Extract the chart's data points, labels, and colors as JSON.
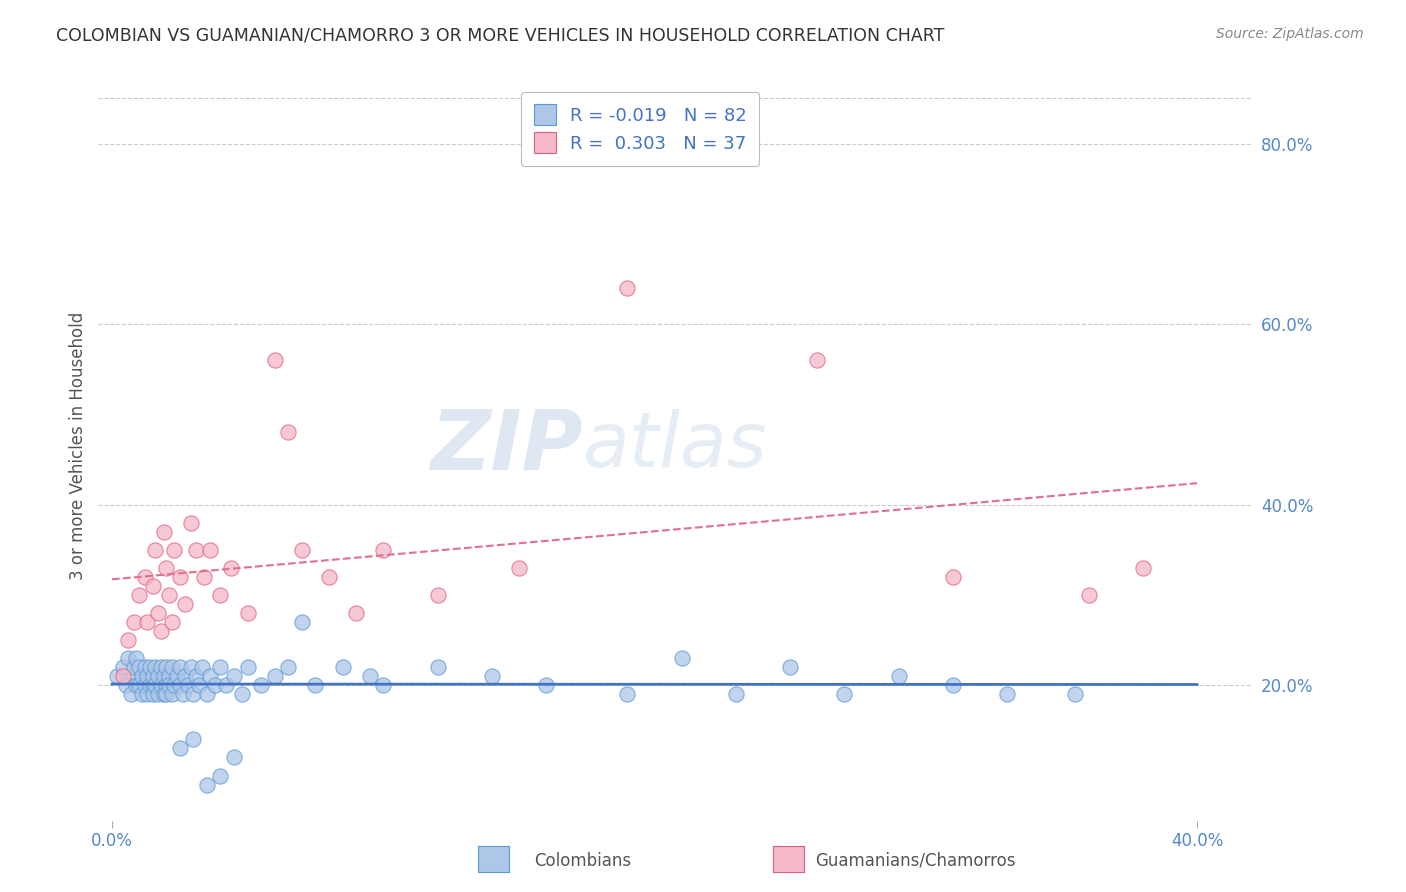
{
  "title": "COLOMBIAN VS GUAMANIAN/CHAMORRO 3 OR MORE VEHICLES IN HOUSEHOLD CORRELATION CHART",
  "source": "Source: ZipAtlas.com",
  "ylabel": "3 or more Vehicles in Household",
  "ytick_labels": [
    "20.0%",
    "40.0%",
    "60.0%",
    "80.0%"
  ],
  "ytick_values": [
    0.2,
    0.4,
    0.6,
    0.8
  ],
  "xtick_labels": [
    "0.0%",
    "40.0%"
  ],
  "xtick_values": [
    0.0,
    0.4
  ],
  "xlim": [
    -0.005,
    0.42
  ],
  "ylim": [
    0.05,
    0.88
  ],
  "legend_label1": "Colombians",
  "legend_label2": "Guamanians/Chamorros",
  "r1": -0.019,
  "n1": 82,
  "r2": 0.303,
  "n2": 37,
  "color_blue_fill": "#aec6e8",
  "color_blue_edge": "#5b9bd5",
  "color_pink_fill": "#f4b8c8",
  "color_pink_edge": "#e06080",
  "color_blue_line": "#4472c4",
  "color_pink_line": "#e07090",
  "grid_color": "#cccccc",
  "watermark_color": "#d0dde8",
  "colombian_x": [
    0.002,
    0.004,
    0.005,
    0.006,
    0.007,
    0.008,
    0.008,
    0.009,
    0.009,
    0.01,
    0.01,
    0.011,
    0.011,
    0.012,
    0.012,
    0.013,
    0.013,
    0.014,
    0.014,
    0.015,
    0.015,
    0.015,
    0.016,
    0.016,
    0.017,
    0.017,
    0.018,
    0.018,
    0.019,
    0.019,
    0.02,
    0.02,
    0.02,
    0.021,
    0.021,
    0.022,
    0.022,
    0.023,
    0.024,
    0.025,
    0.025,
    0.026,
    0.027,
    0.028,
    0.029,
    0.03,
    0.031,
    0.032,
    0.033,
    0.035,
    0.036,
    0.038,
    0.04,
    0.042,
    0.045,
    0.048,
    0.05,
    0.055,
    0.06,
    0.065,
    0.07,
    0.075,
    0.085,
    0.095,
    0.1,
    0.12,
    0.14,
    0.16,
    0.19,
    0.21,
    0.23,
    0.25,
    0.27,
    0.29,
    0.31,
    0.33,
    0.355,
    0.025,
    0.03,
    0.035,
    0.04,
    0.045
  ],
  "colombian_y": [
    0.21,
    0.22,
    0.2,
    0.23,
    0.19,
    0.21,
    0.22,
    0.2,
    0.23,
    0.2,
    0.22,
    0.19,
    0.21,
    0.2,
    0.22,
    0.19,
    0.21,
    0.2,
    0.22,
    0.2,
    0.19,
    0.21,
    0.2,
    0.22,
    0.19,
    0.21,
    0.2,
    0.22,
    0.19,
    0.21,
    0.2,
    0.22,
    0.19,
    0.21,
    0.2,
    0.19,
    0.22,
    0.2,
    0.21,
    0.2,
    0.22,
    0.19,
    0.21,
    0.2,
    0.22,
    0.19,
    0.21,
    0.2,
    0.22,
    0.19,
    0.21,
    0.2,
    0.22,
    0.2,
    0.21,
    0.19,
    0.22,
    0.2,
    0.21,
    0.22,
    0.27,
    0.2,
    0.22,
    0.21,
    0.2,
    0.22,
    0.21,
    0.2,
    0.19,
    0.23,
    0.19,
    0.22,
    0.19,
    0.21,
    0.2,
    0.19,
    0.19,
    0.13,
    0.14,
    0.09,
    0.1,
    0.12
  ],
  "guamanian_x": [
    0.004,
    0.006,
    0.008,
    0.01,
    0.012,
    0.013,
    0.015,
    0.016,
    0.017,
    0.018,
    0.019,
    0.02,
    0.021,
    0.022,
    0.023,
    0.025,
    0.027,
    0.029,
    0.031,
    0.034,
    0.036,
    0.04,
    0.044,
    0.05,
    0.06,
    0.065,
    0.07,
    0.08,
    0.09,
    0.1,
    0.12,
    0.15,
    0.19,
    0.26,
    0.31,
    0.36,
    0.38
  ],
  "guamanian_y": [
    0.21,
    0.25,
    0.27,
    0.3,
    0.32,
    0.27,
    0.31,
    0.35,
    0.28,
    0.26,
    0.37,
    0.33,
    0.3,
    0.27,
    0.35,
    0.32,
    0.29,
    0.38,
    0.35,
    0.32,
    0.35,
    0.3,
    0.33,
    0.28,
    0.56,
    0.48,
    0.35,
    0.32,
    0.28,
    0.35,
    0.3,
    0.33,
    0.64,
    0.56,
    0.32,
    0.3,
    0.33
  ]
}
